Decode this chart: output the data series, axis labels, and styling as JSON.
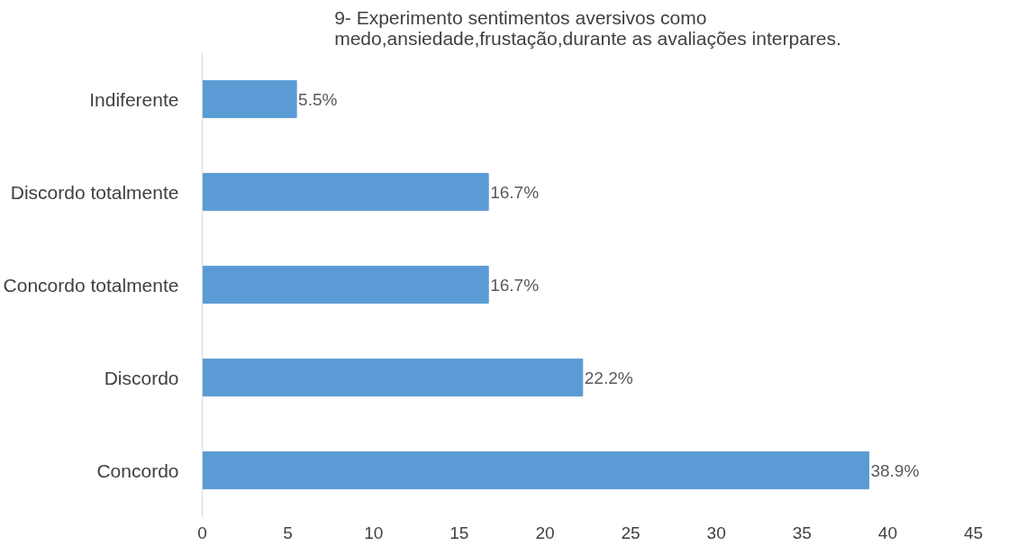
{
  "chart_data": {
    "type": "bar",
    "orientation": "horizontal",
    "title": "9- Experimento sentimentos aversivos como\nmedo,ansiedade,frustação,durante as avaliações interpares.",
    "categories": [
      "Indiferente",
      "Discordo totalmente",
      "Concordo totalmente",
      "Discordo",
      "Concordo"
    ],
    "values": [
      5.5,
      16.7,
      16.7,
      22.2,
      38.9
    ],
    "value_labels": [
      "5.5%",
      "16.7%",
      "16.7%",
      "22.2%",
      "38.9%"
    ],
    "color": "#5b9bd5",
    "xlim": [
      0,
      45
    ],
    "xticks": [
      0,
      5,
      10,
      15,
      20,
      25,
      30,
      35,
      40,
      45
    ],
    "grid": false
  }
}
